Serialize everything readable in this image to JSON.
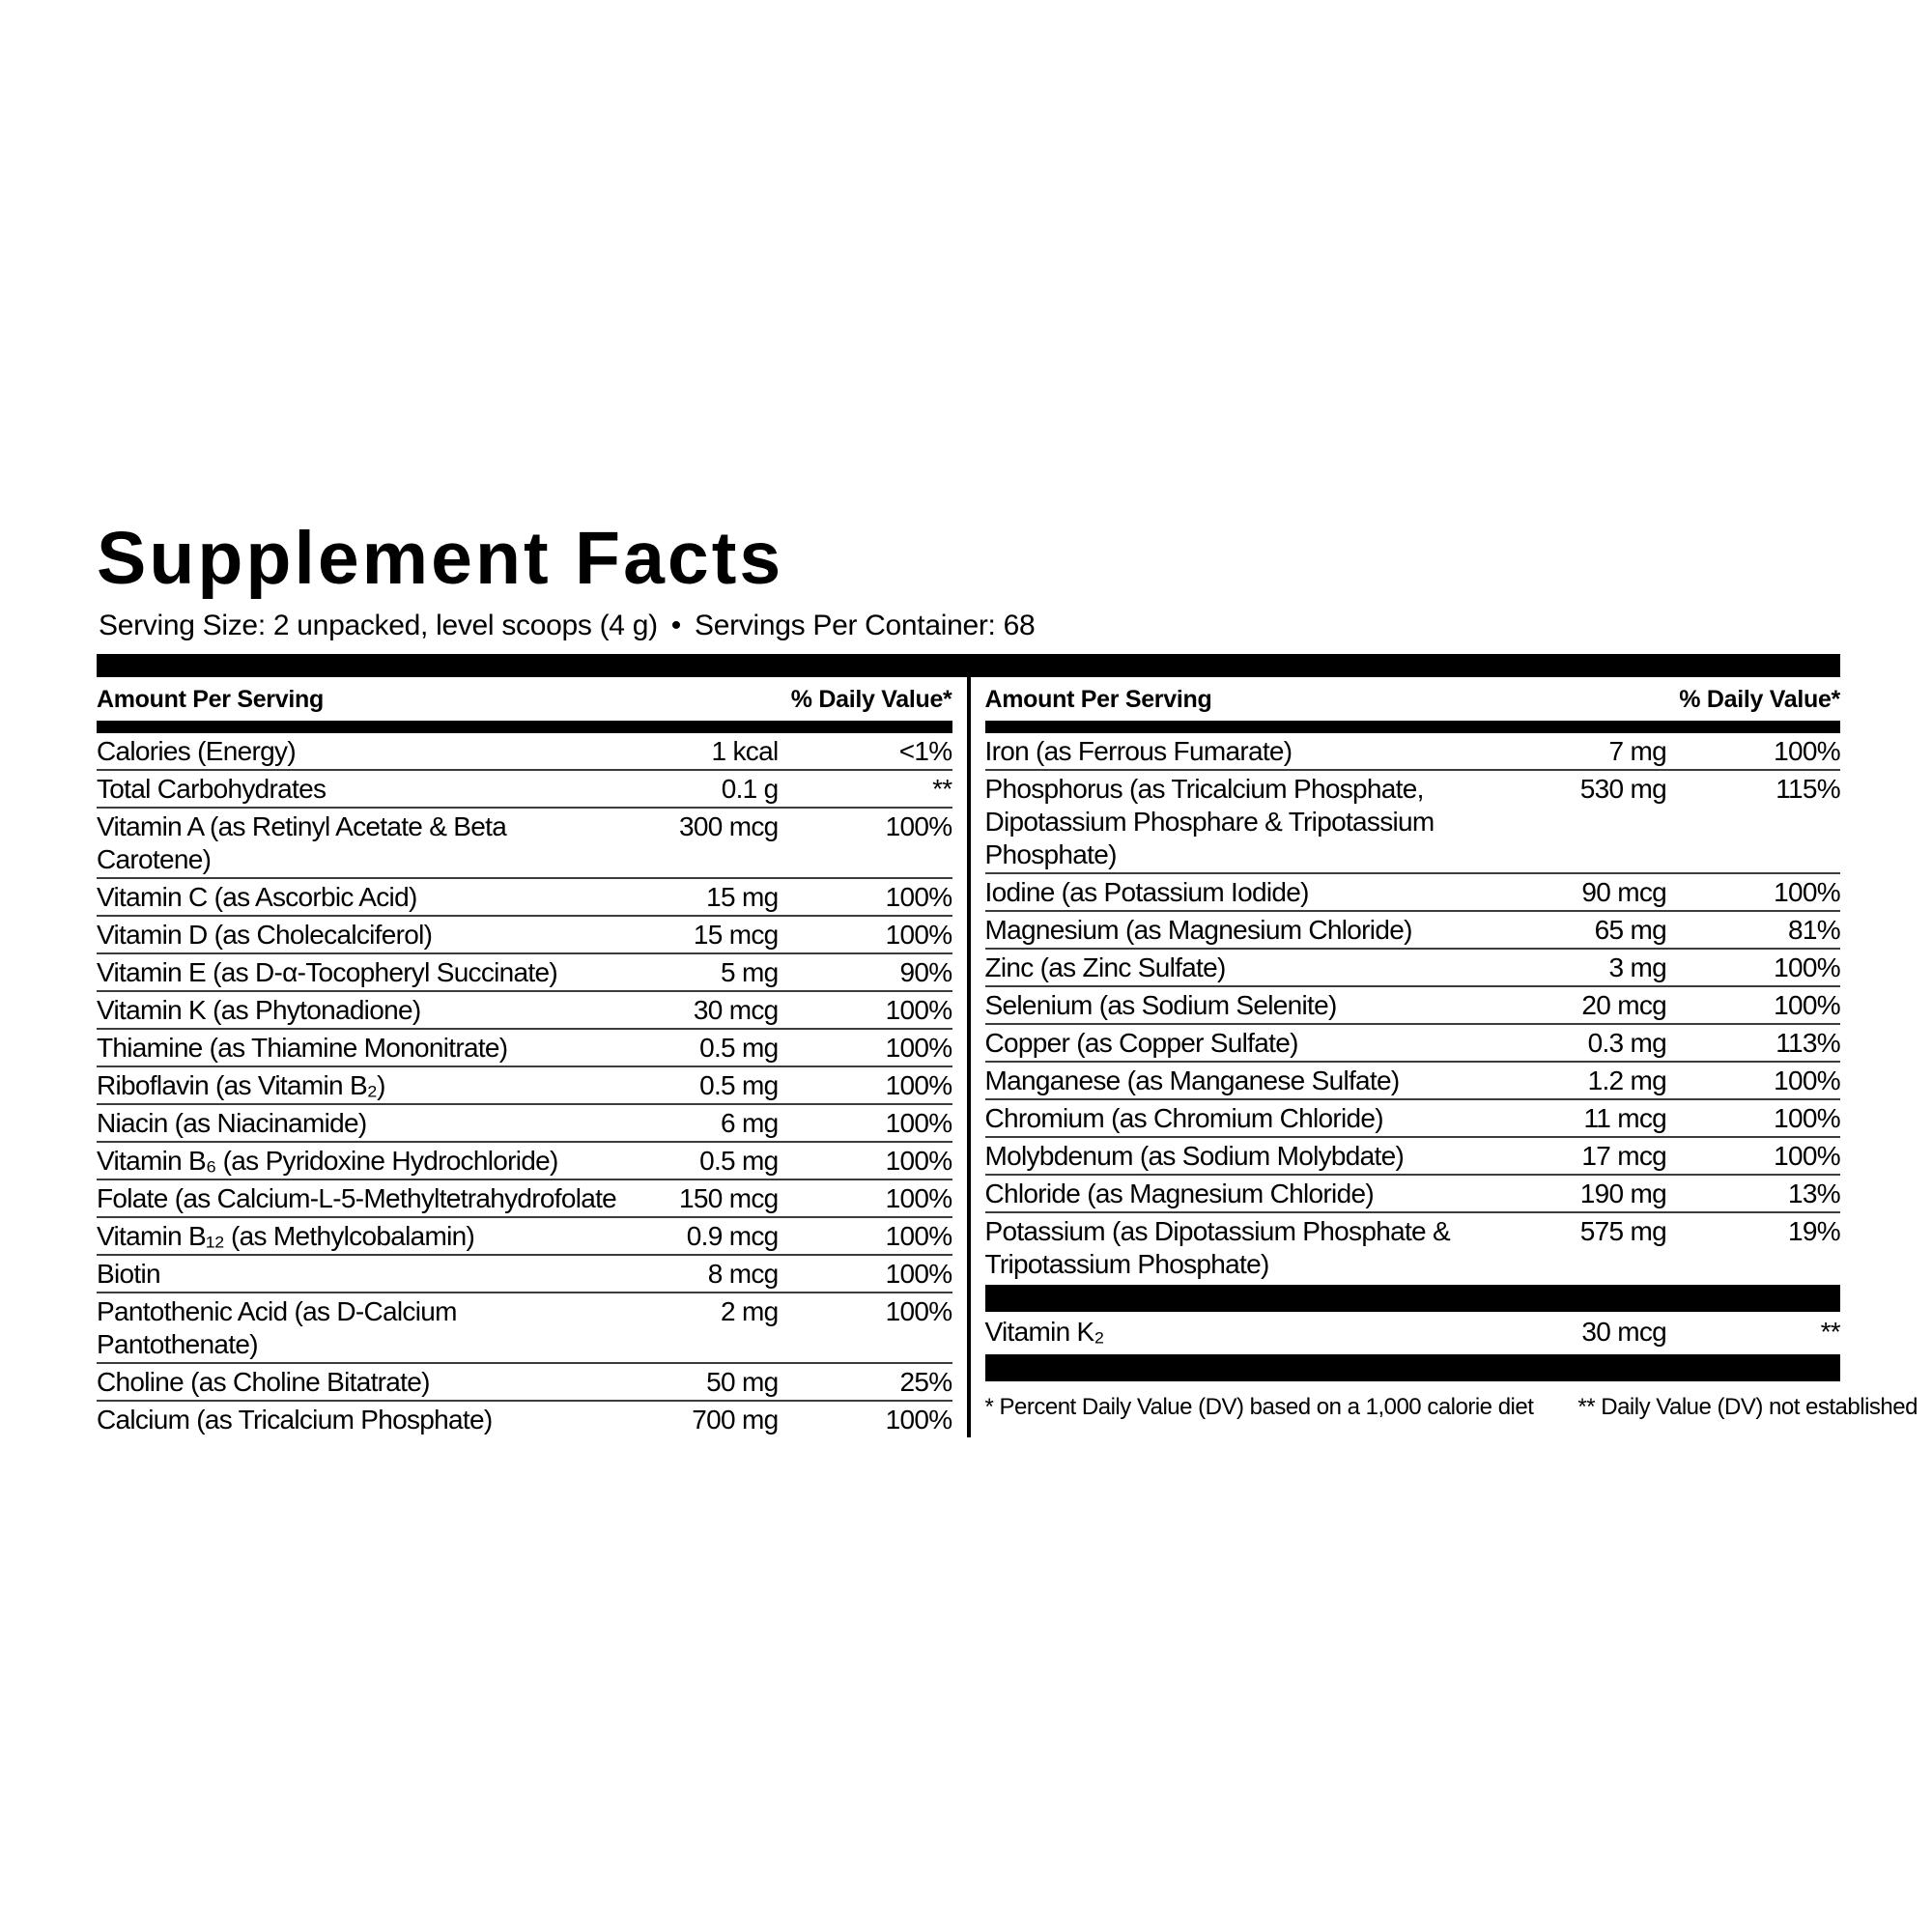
{
  "title": "Supplement Facts",
  "serving": {
    "serving_size": "Serving Size: 2 unpacked, level scoops (4 g)",
    "bullet": "•",
    "servings_per_container": "Servings Per Container: 68"
  },
  "table": {
    "header": {
      "amount_label": "Amount Per Serving",
      "dv_label": "% Daily Value*"
    },
    "left_rows": [
      {
        "label": "Calories (Energy)",
        "amount": "1 kcal",
        "dv": "<1%"
      },
      {
        "label": "Total Carbohydrates",
        "amount": "0.1 g",
        "dv": "**"
      },
      {
        "label": "Vitamin A (as Retinyl Acetate & Beta Carotene)",
        "amount": "300 mcg",
        "dv": "100%"
      },
      {
        "label": "Vitamin C (as Ascorbic Acid)",
        "amount": "15 mg",
        "dv": "100%"
      },
      {
        "label": "Vitamin D (as Cholecalciferol)",
        "amount": "15 mcg",
        "dv": "100%"
      },
      {
        "label": "Vitamin E (as D-α-Tocopheryl Succinate)",
        "amount": "5 mg",
        "dv": "90%"
      },
      {
        "label": "Vitamin K (as Phytonadione)",
        "amount": "30 mcg",
        "dv": "100%"
      },
      {
        "label": "Thiamine (as Thiamine Mononitrate)",
        "amount": "0.5 mg",
        "dv": "100%"
      },
      {
        "label": "Riboflavin (as Vitamin B₂)",
        "amount": "0.5 mg",
        "dv": "100%"
      },
      {
        "label": "Niacin (as Niacinamide)",
        "amount": "6 mg",
        "dv": "100%"
      },
      {
        "label": "Vitamin B₆ (as Pyridoxine Hydrochloride)",
        "amount": "0.5 mg",
        "dv": "100%"
      },
      {
        "label": "Folate (as Calcium-L-5-Methyltetrahydrofolate",
        "amount": "150 mcg",
        "dv": "100%"
      },
      {
        "label": "Vitamin B₁₂ (as Methylcobalamin)",
        "amount": "0.9 mcg",
        "dv": "100%"
      },
      {
        "label": "Biotin",
        "amount": "8 mcg",
        "dv": "100%"
      },
      {
        "label": "Pantothenic Acid (as D-Calcium Pantothenate)",
        "amount": "2 mg",
        "dv": "100%"
      },
      {
        "label": "Choline (as Choline Bitatrate)",
        "amount": "50 mg",
        "dv": "25%"
      },
      {
        "label": "Calcium (as Tricalcium Phosphate)",
        "amount": "700 mg",
        "dv": "100%"
      }
    ],
    "right_rows": [
      {
        "label": "Iron (as Ferrous Fumarate)",
        "amount": "7 mg",
        "dv": "100%"
      },
      {
        "label": "Phosphorus (as Tricalcium Phosphate, Dipotassium Phosphare & Tripotassium Phosphate)",
        "amount": "530 mg",
        "dv": "115%"
      },
      {
        "label": "Iodine (as Potassium Iodide)",
        "amount": "90 mcg",
        "dv": "100%"
      },
      {
        "label": "Magnesium (as Magnesium Chloride)",
        "amount": "65 mg",
        "dv": "81%"
      },
      {
        "label": "Zinc (as Zinc Sulfate)",
        "amount": "3 mg",
        "dv": "100%"
      },
      {
        "label": "Selenium (as Sodium Selenite)",
        "amount": "20 mcg",
        "dv": "100%"
      },
      {
        "label": "Copper (as Copper Sulfate)",
        "amount": "0.3 mg",
        "dv": "113%"
      },
      {
        "label": "Manganese (as Manganese Sulfate)",
        "amount": "1.2 mg",
        "dv": "100%"
      },
      {
        "label": "Chromium (as Chromium Chloride)",
        "amount": "11 mcg",
        "dv": "100%"
      },
      {
        "label": "Molybdenum (as Sodium Molybdate)",
        "amount": "17 mcg",
        "dv": "100%"
      },
      {
        "label": "Chloride (as Magnesium Chloride)",
        "amount": "190 mg",
        "dv": "13%"
      },
      {
        "label": "Potassium (as Dipotassium Phosphate & Tripotassium Phosphate)",
        "amount": "575 mg",
        "dv": "19%"
      }
    ],
    "k2_row": {
      "label": "Vitamin K₂",
      "amount": "30 mcg",
      "dv": "**"
    },
    "footnotes": {
      "dv_basis": "* Percent Daily Value (DV) based on a 1,000 calorie diet",
      "not_established": "** Daily Value (DV) not established"
    }
  }
}
